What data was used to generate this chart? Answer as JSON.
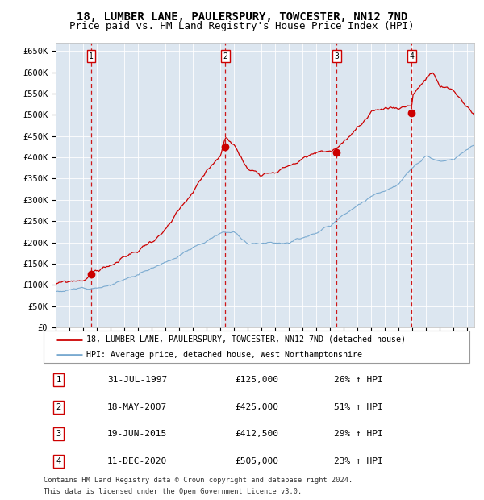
{
  "title": "18, LUMBER LANE, PAULERSPURY, TOWCESTER, NN12 7ND",
  "subtitle": "Price paid vs. HM Land Registry's House Price Index (HPI)",
  "legend_line1": "18, LUMBER LANE, PAULERSPURY, TOWCESTER, NN12 7ND (detached house)",
  "legend_line2": "HPI: Average price, detached house, West Northamptonshire",
  "footer1": "Contains HM Land Registry data © Crown copyright and database right 2024.",
  "footer2": "This data is licensed under the Open Government Licence v3.0.",
  "sale_events": [
    {
      "num": 1,
      "date_yr": 1997.58,
      "price": 125000,
      "pct": "26%",
      "label": "31-JUL-1997",
      "price_label": "£125,000"
    },
    {
      "num": 2,
      "date_yr": 2007.37,
      "price": 425000,
      "pct": "51%",
      "label": "18-MAY-2007",
      "price_label": "£425,000"
    },
    {
      "num": 3,
      "date_yr": 2015.46,
      "price": 412500,
      "pct": "29%",
      "label": "19-JUN-2015",
      "price_label": "£412,500"
    },
    {
      "num": 4,
      "date_yr": 2020.94,
      "price": 505000,
      "pct": "23%",
      "label": "11-DEC-2020",
      "price_label": "£505,000"
    }
  ],
  "hpi_color": "#7aaad0",
  "price_color": "#cc0000",
  "plot_bg_color": "#dce6f0",
  "ylim": [
    0,
    670000
  ],
  "yticks": [
    0,
    50000,
    100000,
    150000,
    200000,
    250000,
    300000,
    350000,
    400000,
    450000,
    500000,
    550000,
    600000,
    650000
  ],
  "ytick_labels": [
    "£0",
    "£50K",
    "£100K",
    "£150K",
    "£200K",
    "£250K",
    "£300K",
    "£350K",
    "£400K",
    "£450K",
    "£500K",
    "£550K",
    "£600K",
    "£650K"
  ],
  "xmin": 1995.0,
  "xmax": 2025.5,
  "title_fontsize": 10,
  "subtitle_fontsize": 9
}
